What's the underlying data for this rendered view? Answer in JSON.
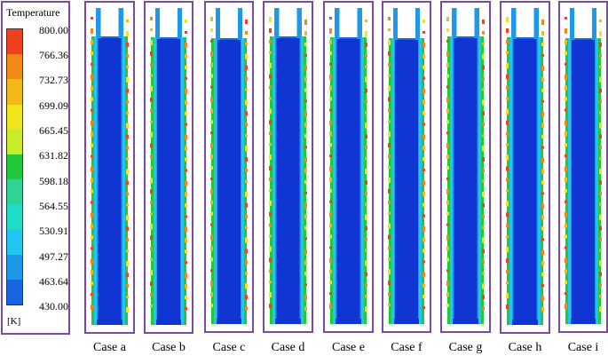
{
  "legend": {
    "title": "Temperature",
    "unit": "[K]",
    "labels": [
      "800.00",
      "766.36",
      "732.73",
      "699.09",
      "665.45",
      "631.82",
      "598.18",
      "564.55",
      "530.91",
      "497.27",
      "463.64",
      "430.00"
    ],
    "colors": [
      "#f0401c",
      "#f08a14",
      "#f2b81a",
      "#f0e41e",
      "#c8ec2a",
      "#22c83c",
      "#2fd495",
      "#1fdcc6",
      "#22c5ef",
      "#1f98ec",
      "#1864e2",
      "#1035d2"
    ]
  },
  "cases": [
    {
      "label": "Case a"
    },
    {
      "label": "Case b"
    },
    {
      "label": "Case c"
    },
    {
      "label": "Case d"
    },
    {
      "label": "Case e"
    },
    {
      "label": "Case f"
    },
    {
      "label": "Case g"
    },
    {
      "label": "Case h"
    },
    {
      "label": "Case i"
    }
  ]
}
